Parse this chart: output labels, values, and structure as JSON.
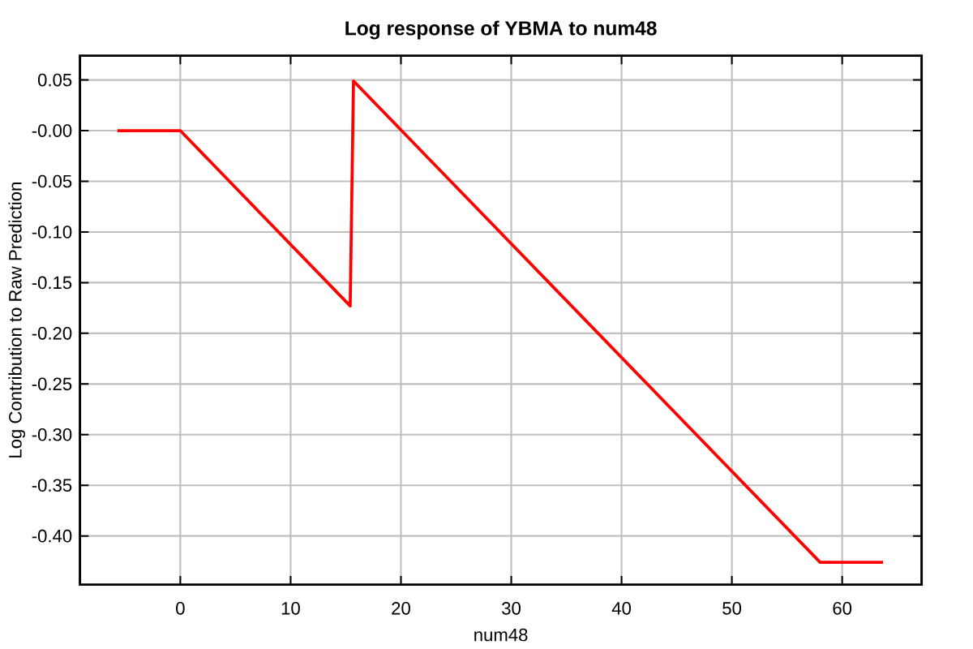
{
  "chart_data": {
    "type": "line",
    "title": "Log response of YBMA to num48",
    "xlabel": "num48",
    "ylabel": "Log Contribution to Raw Prediction",
    "x": [
      -5.7,
      0,
      15.4,
      15.7,
      58.0,
      63.7
    ],
    "series": [
      {
        "color": "#ff0000",
        "values": [
          0,
          0,
          -0.173,
          0.049,
          -0.426,
          -0.426
        ]
      }
    ],
    "xlim": [
      -9.1,
      67.2
    ],
    "ylim": [
      -0.448,
      0.074
    ],
    "xticks": [
      0,
      10,
      20,
      30,
      40,
      50,
      60
    ],
    "yticks": [
      {
        "value": 0.05,
        "label": "0.05"
      },
      {
        "value": 0,
        "label": "-0.00"
      },
      {
        "value": -0.05,
        "label": "-0.05"
      },
      {
        "value": -0.1,
        "label": "-0.10"
      },
      {
        "value": -0.15,
        "label": "-0.15"
      },
      {
        "value": -0.2,
        "label": "-0.20"
      },
      {
        "value": -0.25,
        "label": "-0.25"
      },
      {
        "value": -0.3,
        "label": "-0.30"
      },
      {
        "value": -0.35,
        "label": "-0.35"
      },
      {
        "value": -0.4,
        "label": "-0.40"
      }
    ],
    "grid": true
  }
}
